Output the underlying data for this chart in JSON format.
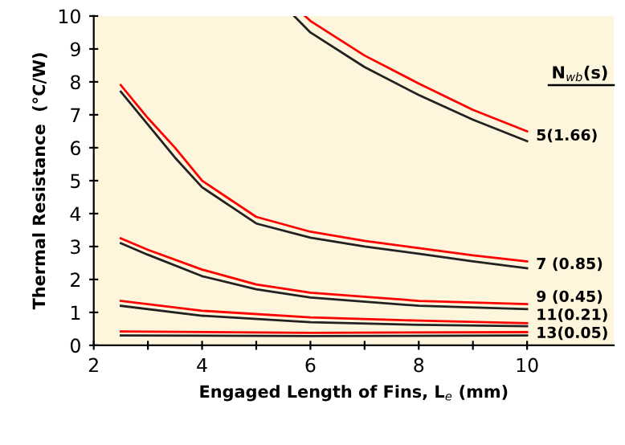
{
  "chart_data": {
    "type": "line",
    "xlabel": "Engaged Length of Fins, L$_{e}$ (mm)",
    "ylabel": "Thermal Resistance  (°C/W)",
    "series": [
      {
        "color": "#ff0000",
        "x": [
          5.9,
          6,
          7,
          8,
          9,
          10
        ],
        "values": [
          10,
          9.85,
          8.8,
          7.95,
          7.15,
          6.5
        ]
      },
      {
        "color": "#222222",
        "x": [
          5.7,
          6,
          7,
          8,
          9,
          10
        ],
        "values": [
          10,
          9.5,
          8.45,
          7.6,
          6.85,
          6.2
        ]
      },
      {
        "color": "#ff0000",
        "x": [
          2.5,
          3,
          3.5,
          4,
          4.5,
          5,
          6,
          7,
          8,
          9,
          10
        ],
        "values": [
          7.9,
          6.9,
          6.0,
          5.0,
          4.45,
          3.9,
          3.45,
          3.17,
          2.95,
          2.73,
          2.55
        ]
      },
      {
        "color": "#222222",
        "x": [
          2.5,
          3,
          3.5,
          4,
          4.5,
          5,
          6,
          7,
          8,
          9,
          10
        ],
        "values": [
          7.7,
          6.7,
          5.7,
          4.8,
          4.25,
          3.7,
          3.27,
          3.0,
          2.78,
          2.55,
          2.34
        ]
      },
      {
        "color": "#ff0000",
        "x": [
          2.5,
          3,
          4,
          5,
          6,
          8,
          10
        ],
        "values": [
          3.25,
          2.9,
          2.3,
          1.85,
          1.6,
          1.35,
          1.25
        ]
      },
      {
        "color": "#222222",
        "x": [
          2.5,
          3,
          4,
          5,
          6,
          8,
          10
        ],
        "values": [
          3.1,
          2.75,
          2.1,
          1.7,
          1.45,
          1.2,
          1.1
        ]
      },
      {
        "color": "#ff0000",
        "x": [
          2.5,
          4,
          6,
          8,
          10
        ],
        "values": [
          1.35,
          1.05,
          0.85,
          0.75,
          0.67
        ]
      },
      {
        "color": "#222222",
        "x": [
          2.5,
          4,
          6,
          8,
          10
        ],
        "values": [
          1.2,
          0.9,
          0.7,
          0.62,
          0.58
        ]
      },
      {
        "color": "#ff0000",
        "x": [
          2.5,
          6,
          10
        ],
        "values": [
          0.42,
          0.38,
          0.4
        ]
      },
      {
        "color": "#222222",
        "x": [
          2.5,
          6,
          10
        ],
        "values": [
          0.3,
          0.28,
          0.3
        ]
      }
    ],
    "xlim": [
      2,
      11.6
    ],
    "ylim": [
      0,
      10
    ],
    "xticks": [
      2,
      {
        "value": 3,
        "label": null
      },
      4,
      {
        "value": 5,
        "label": null
      },
      6,
      {
        "value": 7,
        "label": null
      },
      8,
      {
        "value": 9,
        "label": null
      },
      10
    ],
    "yticks": [
      0,
      1,
      2,
      3,
      4,
      5,
      6,
      7,
      8,
      9,
      10
    ],
    "grid": false,
    "legend": false,
    "marker": "none",
    "line_style": "solid",
    "annotations": [
      "N$_{wb}$(s)",
      "5(1.66)",
      "7 (0.85)",
      "9 (0.45)",
      "11(0.21)",
      "13(0.05)"
    ]
  }
}
